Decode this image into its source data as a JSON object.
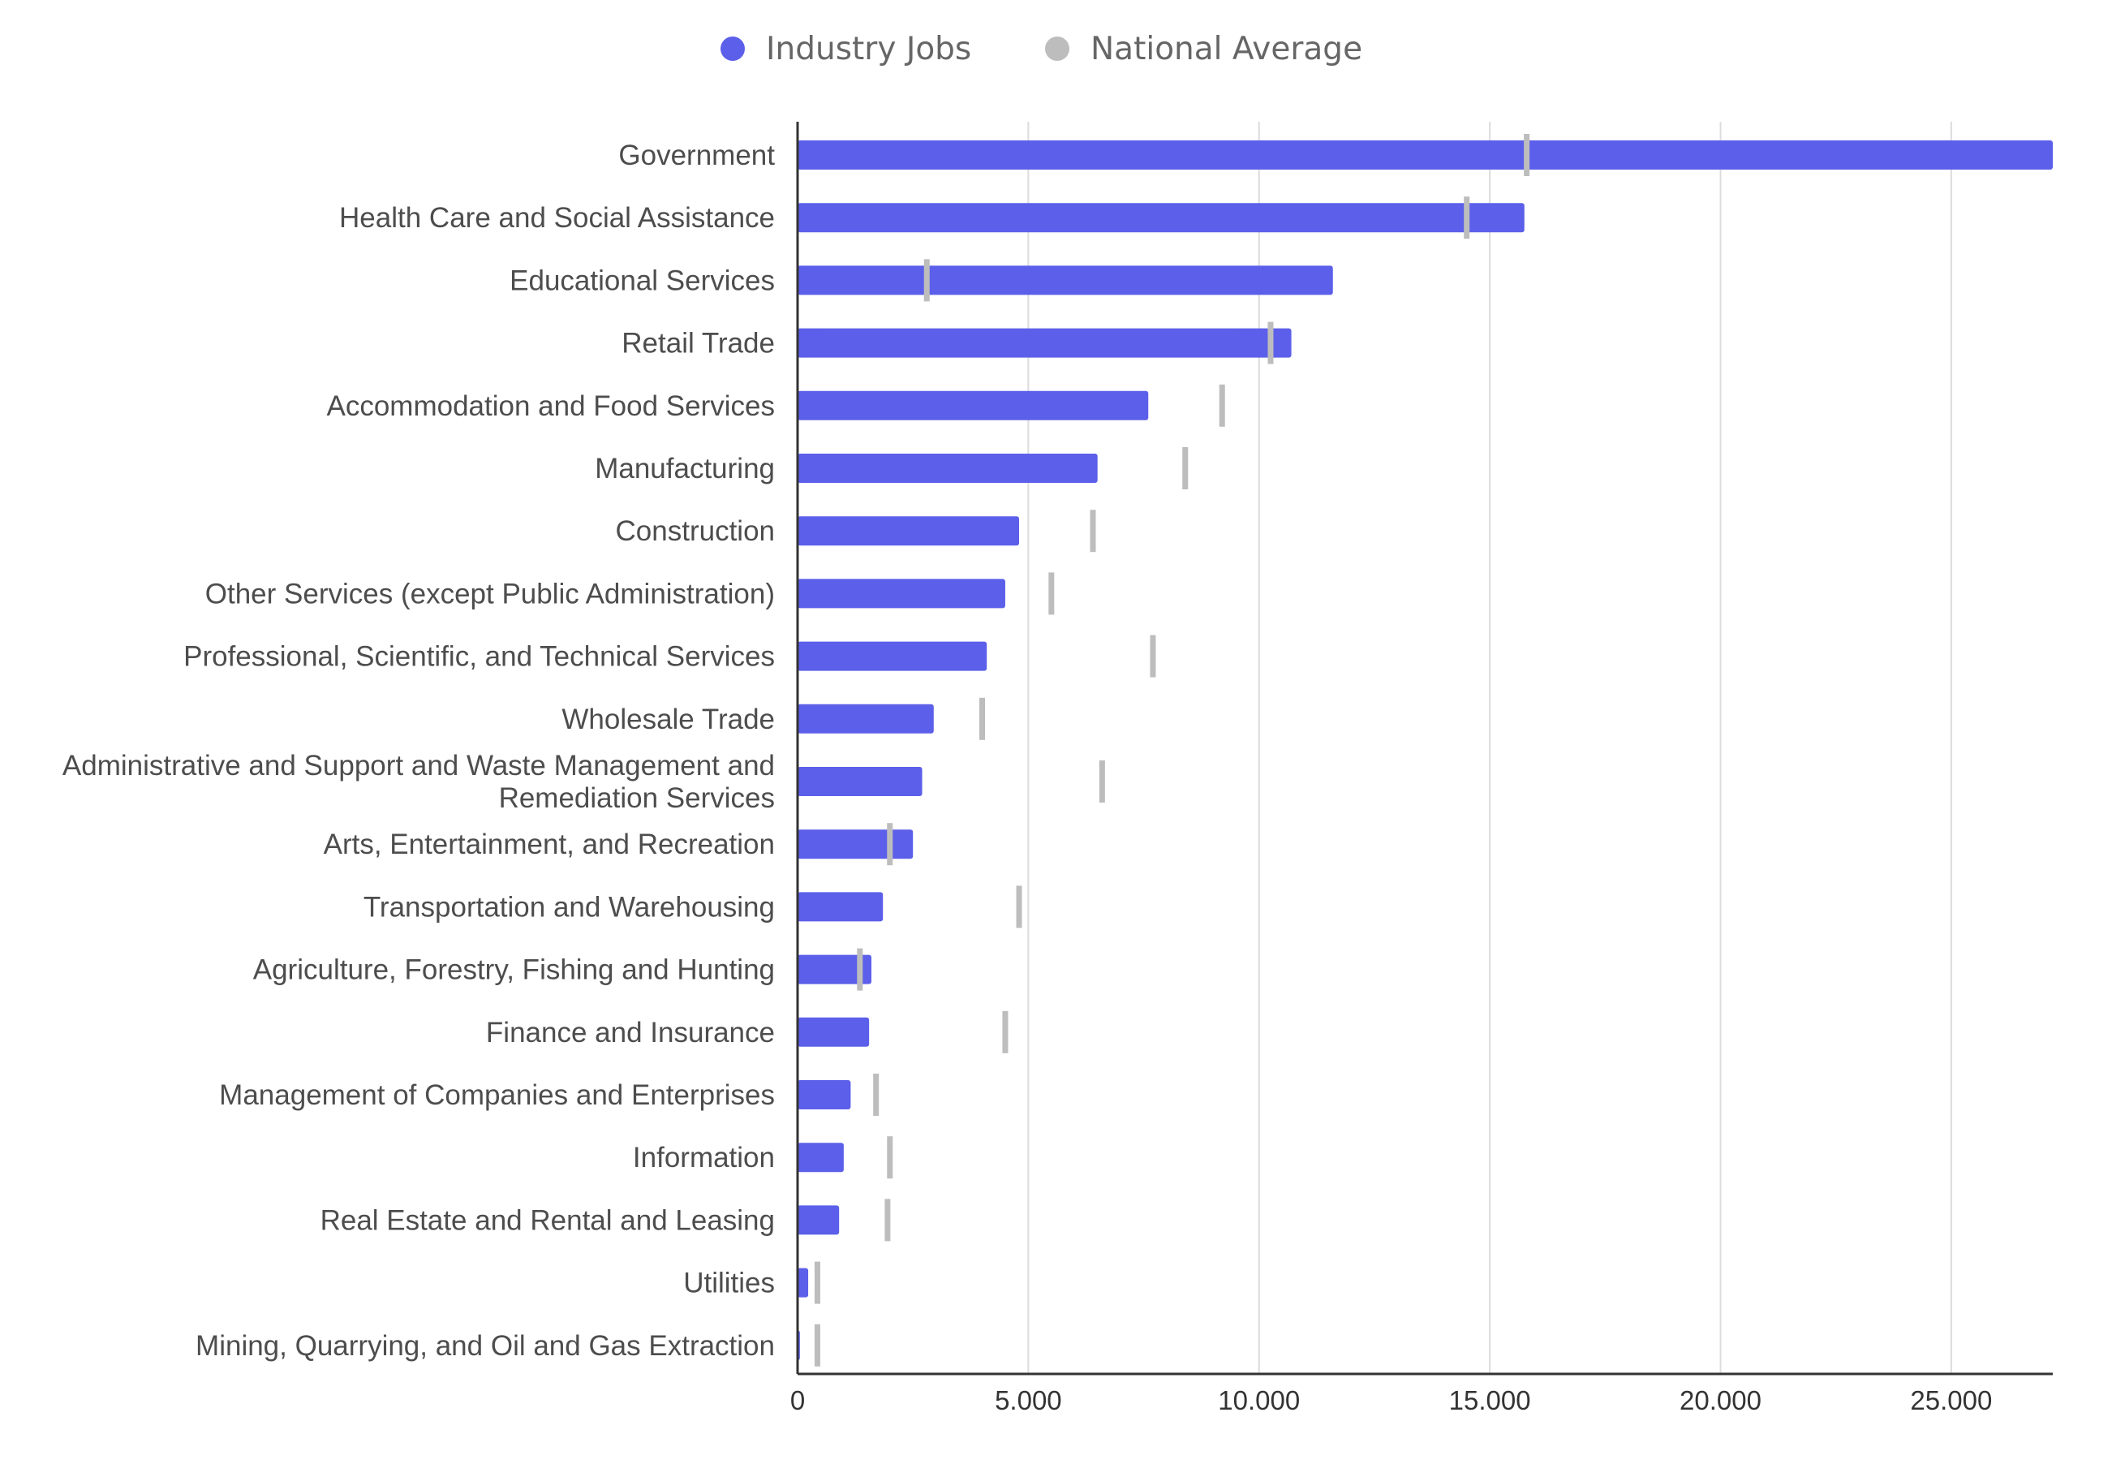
{
  "chart_data": {
    "type": "bar",
    "orientation": "horizontal",
    "title": "",
    "xlabel": "",
    "ylabel": "",
    "xlim": [
      0,
      27200
    ],
    "x_ticks": [
      0,
      5000,
      10000,
      15000,
      20000,
      25000
    ],
    "x_tick_labels": [
      "0",
      "5.000",
      "10.000",
      "15.000",
      "20.000",
      "25.000"
    ],
    "grid": "vertical",
    "legend_position": "top",
    "categories": [
      "Government",
      "Health Care and Social Assistance",
      "Educational Services",
      "Retail Trade",
      "Accommodation and Food Services",
      "Manufacturing",
      "Construction",
      "Other Services (except Public Administration)",
      "Professional, Scientific, and Technical Services",
      "Wholesale Trade",
      "Administrative and Support and Waste Management and Remediation Services",
      "Arts, Entertainment, and Recreation",
      "Transportation and Warehousing",
      "Agriculture, Forestry, Fishing and Hunting",
      "Finance and Insurance",
      "Management of Companies and Enterprises",
      "Information",
      "Real Estate and Rental and Leasing",
      "Utilities",
      "Mining, Quarrying, and Oil and Gas Extraction"
    ],
    "category_label_lines": [
      [
        "Government"
      ],
      [
        "Health Care and Social Assistance"
      ],
      [
        "Educational Services"
      ],
      [
        "Retail Trade"
      ],
      [
        "Accommodation and Food Services"
      ],
      [
        "Manufacturing"
      ],
      [
        "Construction"
      ],
      [
        "Other Services (except Public Administration)"
      ],
      [
        "Professional, Scientific, and Technical Services"
      ],
      [
        "Wholesale Trade"
      ],
      [
        "Administrative and Support and Waste Management and",
        "Remediation Services"
      ],
      [
        "Arts, Entertainment, and Recreation"
      ],
      [
        "Transportation and Warehousing"
      ],
      [
        "Agriculture, Forestry, Fishing and Hunting"
      ],
      [
        "Finance and Insurance"
      ],
      [
        "Management of Companies and Enterprises"
      ],
      [
        "Information"
      ],
      [
        "Real Estate and Rental and Leasing"
      ],
      [
        "Utilities"
      ],
      [
        "Mining, Quarrying, and Oil and Gas Extraction"
      ]
    ],
    "series": [
      {
        "name": "Industry Jobs",
        "color": "#5c5fe9",
        "mark": "bar",
        "values": [
          27200,
          15750,
          11600,
          10700,
          7600,
          6500,
          4800,
          4500,
          4100,
          2950,
          2700,
          2500,
          1850,
          1600,
          1550,
          1150,
          1000,
          900,
          230,
          50
        ]
      },
      {
        "name": "National Average",
        "color": "#bdbdbd",
        "mark": "tick",
        "values": [
          15800,
          14500,
          2800,
          10250,
          9200,
          8400,
          6400,
          5500,
          7700,
          4000,
          6600,
          2000,
          4800,
          1350,
          4500,
          1700,
          2000,
          1950,
          430,
          430
        ]
      }
    ]
  }
}
